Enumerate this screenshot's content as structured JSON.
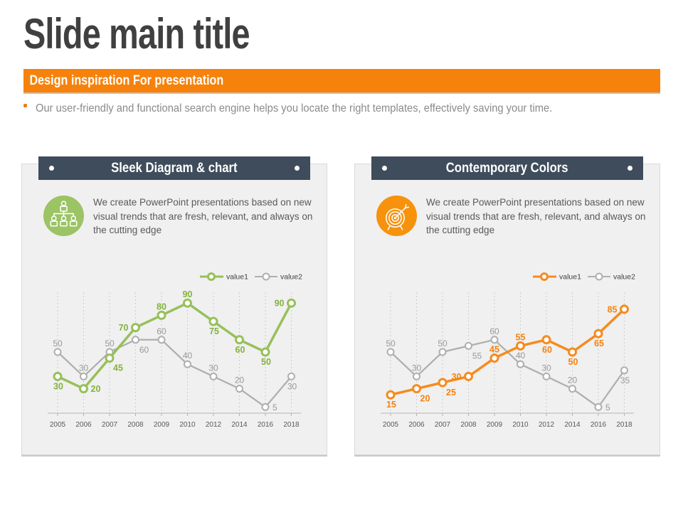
{
  "slide": {
    "title": "Slide main title",
    "banner_label": "Design inspiration For presentation",
    "bullet_text": "Our user-friendly and functional search engine helps you locate the right templates, effectively saving your time.",
    "colors": {
      "accent_orange": "#F6820C",
      "header_slate": "#3E4C5B",
      "title_gray": "#404040",
      "card_bg": "#F0F0F0"
    }
  },
  "cards": [
    {
      "header": "Sleek Diagram & chart",
      "icon": "org-chart-icon",
      "icon_bg": "#9CC364",
      "description": "We create PowerPoint presentations based on new visual trends that are fresh, relevant, and always on the cutting edge"
    },
    {
      "header": "Contemporary Colors",
      "icon": "target-icon",
      "icon_bg": "#F7920D",
      "description": "We create PowerPoint presentations based on new visual trends that are fresh, relevant, and always on the cutting edge"
    }
  ],
  "chart_data": [
    {
      "type": "line",
      "panel": "Sleek Diagram & chart",
      "categories": [
        "2005",
        "2006",
        "2007",
        "2008",
        "2009",
        "2010",
        "2012",
        "2014",
        "2016",
        "2018"
      ],
      "series": [
        {
          "name": "value1",
          "color": "#97C05A",
          "label_color": "#84B23F",
          "values": [
            30,
            20,
            45,
            70,
            80,
            90,
            75,
            60,
            50,
            90
          ],
          "label_pos": [
            "below",
            "right",
            "below-right",
            "left",
            "above",
            "above",
            "below",
            "below",
            "below",
            "left"
          ]
        },
        {
          "name": "value2",
          "color": "#AFAFAF",
          "label_color": "#999999",
          "values": [
            50,
            30,
            50,
            60,
            60,
            40,
            30,
            20,
            5,
            30
          ],
          "label_pos": [
            "above",
            "above",
            "above",
            "below-right",
            "above",
            "above",
            "above",
            "above",
            "right",
            "below"
          ]
        }
      ],
      "ylim": [
        0,
        100
      ],
      "grid": "vertical-dashed",
      "legend_position": "top-right",
      "data_labels": true
    },
    {
      "type": "line",
      "panel": "Contemporary Colors",
      "categories": [
        "2005",
        "2006",
        "2007",
        "2008",
        "2009",
        "2010",
        "2012",
        "2014",
        "2016",
        "2018"
      ],
      "series": [
        {
          "name": "value1",
          "color": "#F68B1F",
          "label_color": "#F5830D",
          "values": [
            15,
            20,
            25,
            30,
            45,
            55,
            60,
            50,
            65,
            85
          ],
          "label_pos": [
            "below",
            "below-right",
            "below-right",
            "left",
            "above",
            "above",
            "below",
            "below",
            "below",
            "left"
          ]
        },
        {
          "name": "value2",
          "color": "#AFAFAF",
          "label_color": "#999999",
          "values": [
            50,
            30,
            50,
            55,
            60,
            40,
            30,
            20,
            5,
            35
          ],
          "label_pos": [
            "above",
            "above",
            "above",
            "below-right",
            "above",
            "above",
            "above",
            "above",
            "right",
            "below"
          ]
        }
      ],
      "ylim": [
        0,
        100
      ],
      "grid": "vertical-dashed",
      "legend_position": "top-right",
      "data_labels": true
    }
  ]
}
